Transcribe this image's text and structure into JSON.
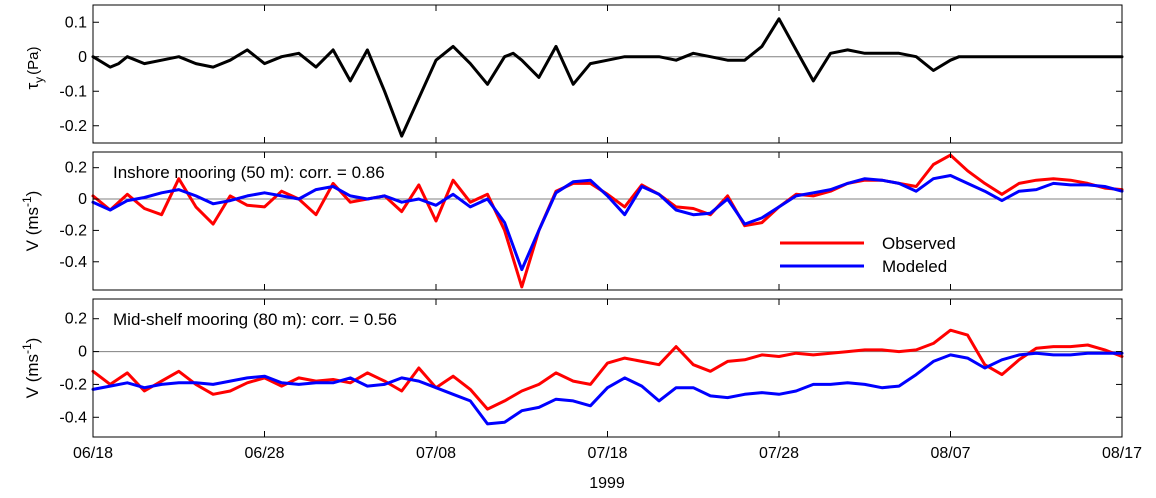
{
  "figure": {
    "xlabel": "1999",
    "x_start": "06/18",
    "x_end": "08/17",
    "x_ticks": [
      "06/18",
      "06/28",
      "07/08",
      "07/18",
      "07/28",
      "08/07",
      "08/17"
    ],
    "colors": {
      "wind": "#000000",
      "observed": "#ff0000",
      "modeled": "#0000ff",
      "zero_line": "#808080"
    }
  },
  "chart_data": [
    {
      "type": "line",
      "ylabel_main": "τ",
      "ylabel_sub": "y",
      "ylabel_unit": "(Pa)",
      "ylim": [
        -0.25,
        0.15
      ],
      "yticks": [
        0.1,
        0,
        -0.1,
        -0.2
      ],
      "ytick_labels": [
        "0.1",
        "0",
        "-0.1",
        "-0.2"
      ],
      "annotation": "",
      "grid": false,
      "x_days": [
        0,
        1,
        1.5,
        2,
        3,
        4,
        5,
        6,
        7,
        8,
        9,
        10,
        11,
        12,
        13,
        14,
        15,
        16,
        17,
        18,
        19,
        20,
        21,
        22,
        23,
        24,
        24.5,
        25,
        26,
        27,
        28,
        29,
        30,
        31,
        32,
        33,
        34,
        35,
        36,
        37,
        38,
        39,
        40,
        41,
        42,
        43,
        44,
        45,
        46,
        47,
        48,
        49,
        50,
        50.5,
        51,
        52,
        53,
        54,
        55,
        56,
        57,
        58,
        59,
        60
      ],
      "series": [
        {
          "name": "",
          "color": "#000000",
          "values": [
            0,
            -0.03,
            -0.02,
            0,
            -0.02,
            -0.01,
            0,
            -0.02,
            -0.03,
            -0.01,
            0.02,
            -0.02,
            0,
            0.01,
            -0.03,
            0.02,
            -0.07,
            0.02,
            -0.1,
            -0.23,
            -0.12,
            -0.01,
            0.03,
            -0.02,
            -0.08,
            0,
            0.01,
            -0.01,
            -0.06,
            0.03,
            -0.08,
            -0.02,
            -0.01,
            0,
            0,
            0,
            -0.01,
            0.01,
            0,
            -0.01,
            -0.01,
            0.03,
            0.11,
            0.02,
            -0.07,
            0.01,
            0.02,
            0.01,
            0.01,
            0.01,
            0,
            -0.04,
            -0.01,
            0,
            0,
            0,
            0,
            0,
            0,
            0,
            0,
            0,
            0,
            0
          ]
        }
      ]
    },
    {
      "type": "line",
      "ylabel_main": "V (ms",
      "ylabel_sup": "-1",
      "ylabel_close": ")",
      "ylim": [
        -0.58,
        0.3
      ],
      "yticks": [
        0.2,
        0,
        -0.2,
        -0.4
      ],
      "ytick_labels": [
        "0.2",
        "0",
        "-0.2",
        "-0.4"
      ],
      "annotation": "Inshore mooring (50 m): corr. = 0.86",
      "legend": {
        "position": "lower-right",
        "entries": [
          "Observed",
          "Modeled"
        ]
      },
      "x_days": [
        0,
        1,
        2,
        3,
        4,
        5,
        6,
        7,
        8,
        9,
        10,
        11,
        12,
        13,
        14,
        15,
        16,
        17,
        18,
        19,
        20,
        21,
        22,
        23,
        24,
        25,
        26,
        27,
        28,
        29,
        30,
        31,
        32,
        33,
        34,
        35,
        36,
        37,
        38,
        39,
        40,
        41,
        42,
        43,
        44,
        45,
        46,
        47,
        48,
        49,
        50,
        51,
        52,
        53,
        54,
        55,
        56,
        57,
        58,
        59,
        60
      ],
      "series": [
        {
          "name": "Observed",
          "color": "#ff0000",
          "values": [
            0.02,
            -0.07,
            0.03,
            -0.06,
            -0.1,
            0.13,
            -0.05,
            -0.16,
            0.02,
            -0.04,
            -0.05,
            0.05,
            0,
            -0.1,
            0.1,
            -0.02,
            0,
            0.02,
            -0.08,
            0.09,
            -0.14,
            0.12,
            -0.02,
            0.03,
            -0.2,
            -0.56,
            -0.2,
            0.05,
            0.1,
            0.1,
            0.03,
            -0.05,
            0.09,
            0.03,
            -0.05,
            -0.06,
            -0.1,
            0.02,
            -0.17,
            -0.15,
            -0.05,
            0.03,
            0.02,
            0.05,
            0.1,
            0.12,
            0.12,
            0.1,
            0.08,
            0.22,
            0.28,
            0.18,
            0.1,
            0.03,
            0.1,
            0.12,
            0.13,
            0.12,
            0.1,
            0.07,
            0.06
          ]
        },
        {
          "name": "Modeled",
          "color": "#0000ff",
          "values": [
            -0.02,
            -0.07,
            -0.01,
            0.01,
            0.04,
            0.06,
            0.02,
            -0.03,
            -0.01,
            0.02,
            0.04,
            0.02,
            0,
            0.06,
            0.08,
            0.02,
            0,
            0.02,
            -0.02,
            0,
            -0.04,
            0.03,
            -0.05,
            0,
            -0.15,
            -0.45,
            -0.2,
            0.04,
            0.11,
            0.12,
            0.02,
            -0.1,
            0.08,
            0.03,
            -0.07,
            -0.1,
            -0.09,
            0,
            -0.16,
            -0.12,
            -0.05,
            0.02,
            0.04,
            0.06,
            0.1,
            0.13,
            0.12,
            0.1,
            0.05,
            0.13,
            0.15,
            0.1,
            0.05,
            -0.01,
            0.05,
            0.06,
            0.1,
            0.09,
            0.09,
            0.08,
            0.05
          ]
        }
      ]
    },
    {
      "type": "line",
      "ylabel_main": "V (ms",
      "ylabel_sup": "-1",
      "ylabel_close": ")",
      "ylim": [
        -0.52,
        0.32
      ],
      "yticks": [
        0.2,
        0,
        -0.2,
        -0.4
      ],
      "ytick_labels": [
        "0.2",
        "0",
        "-0.2",
        "-0.4"
      ],
      "annotation": "Mid-shelf mooring (80 m): corr. = 0.56",
      "x_days": [
        0,
        1,
        2,
        3,
        4,
        5,
        6,
        7,
        8,
        9,
        10,
        11,
        12,
        13,
        14,
        15,
        16,
        17,
        18,
        19,
        20,
        21,
        22,
        23,
        24,
        25,
        26,
        27,
        28,
        29,
        30,
        31,
        32,
        33,
        34,
        35,
        36,
        37,
        38,
        39,
        40,
        41,
        42,
        43,
        44,
        45,
        46,
        47,
        48,
        49,
        50,
        51,
        52,
        53,
        54,
        55,
        56,
        57,
        58,
        59,
        60
      ],
      "series": [
        {
          "name": "Observed",
          "color": "#ff0000",
          "values": [
            -0.12,
            -0.2,
            -0.13,
            -0.24,
            -0.18,
            -0.12,
            -0.2,
            -0.26,
            -0.24,
            -0.19,
            -0.16,
            -0.21,
            -0.16,
            -0.18,
            -0.17,
            -0.19,
            -0.13,
            -0.18,
            -0.24,
            -0.1,
            -0.22,
            -0.15,
            -0.23,
            -0.35,
            -0.3,
            -0.24,
            -0.2,
            -0.13,
            -0.18,
            -0.2,
            -0.07,
            -0.04,
            -0.06,
            -0.08,
            0.03,
            -0.08,
            -0.12,
            -0.06,
            -0.05,
            -0.02,
            -0.03,
            -0.01,
            -0.02,
            -0.01,
            0,
            0.01,
            0.01,
            0,
            0.01,
            0.05,
            0.13,
            0.1,
            -0.08,
            -0.14,
            -0.05,
            0.02,
            0.03,
            0.03,
            0.04,
            0.01,
            -0.03
          ]
        },
        {
          "name": "Modeled",
          "color": "#0000ff",
          "values": [
            -0.23,
            -0.21,
            -0.19,
            -0.22,
            -0.2,
            -0.19,
            -0.19,
            -0.2,
            -0.18,
            -0.16,
            -0.15,
            -0.19,
            -0.2,
            -0.19,
            -0.19,
            -0.16,
            -0.21,
            -0.2,
            -0.16,
            -0.18,
            -0.22,
            -0.26,
            -0.3,
            -0.44,
            -0.43,
            -0.36,
            -0.34,
            -0.29,
            -0.3,
            -0.33,
            -0.22,
            -0.16,
            -0.21,
            -0.3,
            -0.22,
            -0.22,
            -0.27,
            -0.28,
            -0.26,
            -0.25,
            -0.26,
            -0.24,
            -0.2,
            -0.2,
            -0.19,
            -0.2,
            -0.22,
            -0.21,
            -0.14,
            -0.06,
            -0.02,
            -0.04,
            -0.1,
            -0.05,
            -0.02,
            -0.01,
            -0.02,
            -0.02,
            -0.01,
            -0.01,
            -0.01
          ]
        }
      ]
    }
  ]
}
